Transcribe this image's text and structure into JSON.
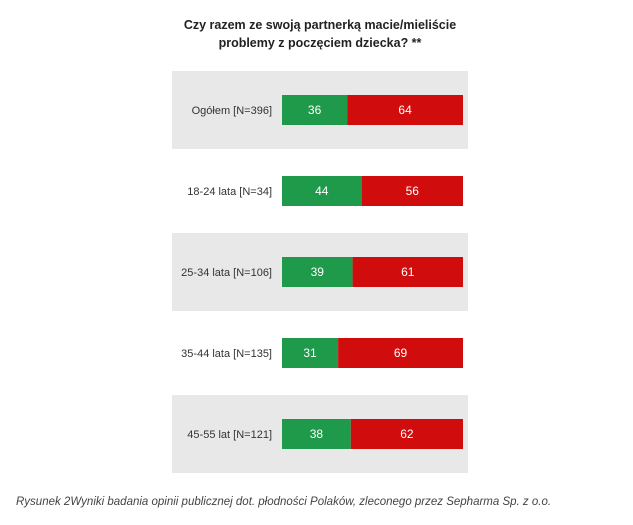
{
  "chart_data": {
    "type": "bar",
    "orientation": "horizontal",
    "stacked": true,
    "title_lines": [
      "Czy razem ze swoją partnerką macie/mieliście",
      "problemy z poczęciem dziecka? **"
    ],
    "categories": [
      "Ogółem [N=396]",
      "18-24 lata [N=34]",
      "25-34 lata [N=106]",
      "35-44 lata [N=135]",
      "45-55 lat [N=121]"
    ],
    "series": [
      {
        "values": [
          36,
          44,
          39,
          31,
          38
        ],
        "color": "#1f9a4a"
      },
      {
        "values": [
          64,
          56,
          61,
          69,
          62
        ],
        "color": "#d10c0c"
      }
    ],
    "value_labels": [
      [
        "36",
        "44",
        "39",
        "31",
        "38"
      ],
      [
        "64",
        "56",
        "61",
        "69",
        "62"
      ]
    ],
    "xlim": [
      0,
      100
    ],
    "grid": false,
    "row_shading": "alternating-grey",
    "label_color": "#ffffff",
    "band_color": "#e8e8e8"
  },
  "caption": "Rysunek 2Wyniki badania opinii publicznej dot. płodności Polaków, zleconego przez Sepharma Sp. z o.o."
}
